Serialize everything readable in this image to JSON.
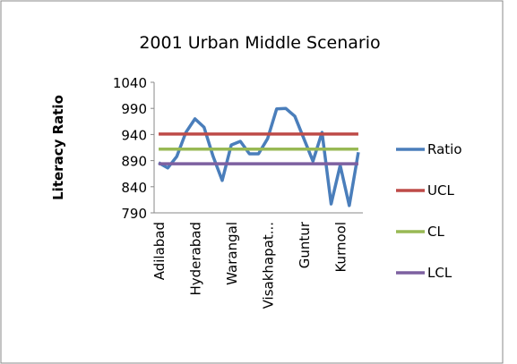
{
  "chart_data": {
    "type": "line",
    "title": "2001 Urban Middle Scenario",
    "y_label": "Literacy Ratio",
    "categories": [
      "Adilabad",
      null,
      null,
      null,
      "Hyderabad",
      null,
      null,
      null,
      "Warangal",
      null,
      null,
      null,
      "Visakhapat...",
      null,
      null,
      null,
      "Guntur",
      null,
      null,
      null,
      "Kurnool",
      null,
      null
    ],
    "series": [
      {
        "name": "Ratio",
        "color": "#4a7ebb",
        "values": [
          886,
          876,
          898,
          944,
          970,
          954,
          898,
          852,
          920,
          927,
          903,
          903,
          932,
          989,
          990,
          975,
          932,
          889,
          944,
          807,
          881,
          804,
          906
        ]
      },
      {
        "name": "UCL",
        "color": "#be4b48",
        "values": [
          941,
          941,
          941,
          941,
          941,
          941,
          941,
          941,
          941,
          941,
          941,
          941,
          941,
          941,
          941,
          941,
          941,
          941,
          941,
          941,
          941,
          941,
          941
        ]
      },
      {
        "name": "CL",
        "color": "#98b954",
        "values": [
          912,
          912,
          912,
          912,
          912,
          912,
          912,
          912,
          912,
          912,
          912,
          912,
          912,
          912,
          912,
          912,
          912,
          912,
          912,
          912,
          912,
          912,
          912
        ]
      },
      {
        "name": "LCL",
        "color": "#7d60a0",
        "values": [
          884,
          884,
          884,
          884,
          884,
          884,
          884,
          884,
          884,
          884,
          884,
          884,
          884,
          884,
          884,
          884,
          884,
          884,
          884,
          884,
          884,
          884,
          884
        ]
      }
    ],
    "ylim": [
      790,
      1040
    ],
    "yticks": [
      790,
      840,
      890,
      940,
      990,
      1040
    ],
    "grid": false,
    "legend": "right"
  }
}
